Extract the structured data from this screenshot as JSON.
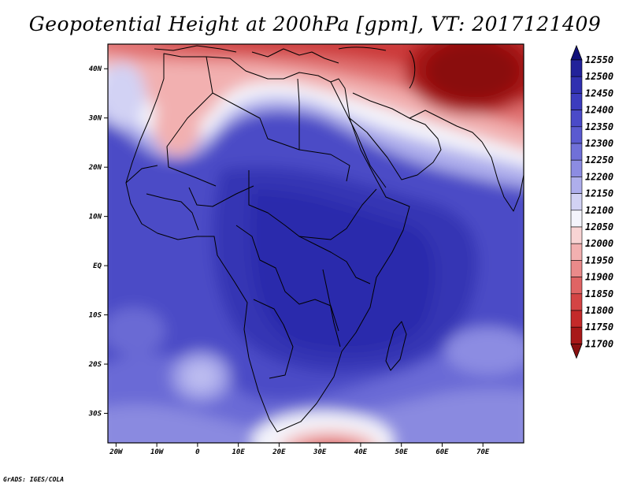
{
  "title": "Geopotential Height at 200hPa [gpm], VT: 2017121409",
  "credit": "GrADS: IGES/COLA",
  "map": {
    "lon_range": [
      -22,
      80
    ],
    "lat_range": [
      -36,
      45
    ],
    "lat_ticks": [
      {
        "lat": 40,
        "label": "40N"
      },
      {
        "lat": 30,
        "label": "30N"
      },
      {
        "lat": 20,
        "label": "20N"
      },
      {
        "lat": 10,
        "label": "10N"
      },
      {
        "lat": 0,
        "label": "EQ"
      },
      {
        "lat": -10,
        "label": "10S"
      },
      {
        "lat": -20,
        "label": "20S"
      },
      {
        "lat": -30,
        "label": "30S"
      }
    ],
    "lon_ticks": [
      {
        "lon": -20,
        "label": "20W"
      },
      {
        "lon": -10,
        "label": "10W"
      },
      {
        "lon": 0,
        "label": "0"
      },
      {
        "lon": 10,
        "label": "10E"
      },
      {
        "lon": 20,
        "label": "20E"
      },
      {
        "lon": 30,
        "label": "30E"
      },
      {
        "lon": 40,
        "label": "40E"
      },
      {
        "lon": 50,
        "label": "50E"
      },
      {
        "lon": 60,
        "label": "60E"
      },
      {
        "lon": 70,
        "label": "70E"
      }
    ]
  },
  "legend": {
    "levels": [
      "12550",
      "12500",
      "12450",
      "12400",
      "12350",
      "12300",
      "12250",
      "12200",
      "12150",
      "12100",
      "12050",
      "12000",
      "11950",
      "11900",
      "11850",
      "11800",
      "11750",
      "11700"
    ],
    "colors": [
      "#12127a",
      "#22229a",
      "#3030b0",
      "#3c3cbe",
      "#4a4ac8",
      "#5a5ad0",
      "#7070d8",
      "#8c8ce2",
      "#aeaeec",
      "#d2d2f4",
      "#f4f4fb",
      "#f8d4d4",
      "#f2b0b0",
      "#ea8a8a",
      "#e06464",
      "#d44444",
      "#c42a2a",
      "#a81818",
      "#8a1010"
    ]
  }
}
